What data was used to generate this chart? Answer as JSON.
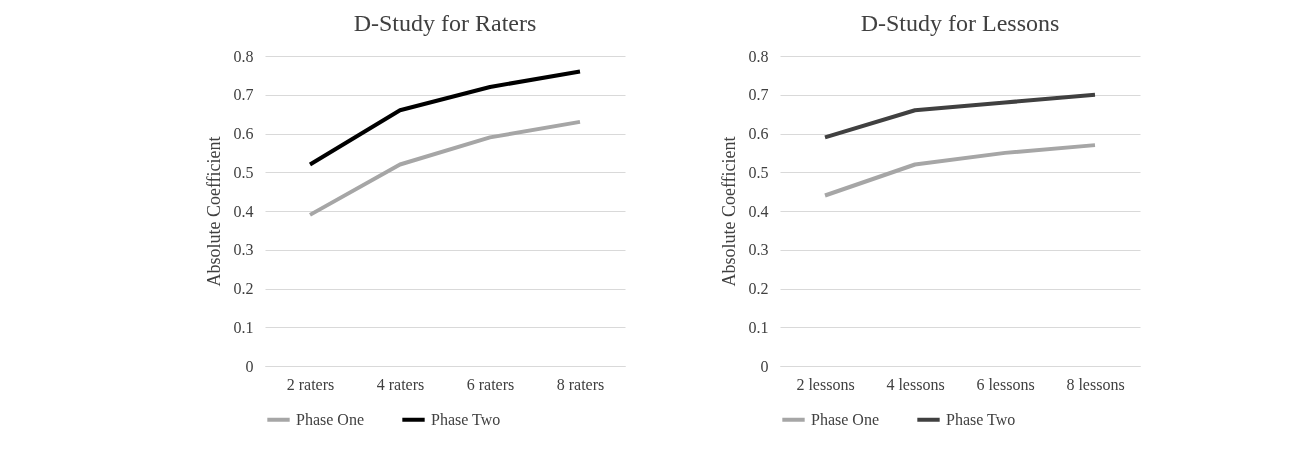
{
  "chart_data": [
    {
      "type": "line",
      "title": "D-Study for Raters",
      "ylabel": "Absolute Coefficient",
      "categories": [
        "2 raters",
        "4 raters",
        "6 raters",
        "8 raters"
      ],
      "ylim": [
        0,
        0.8
      ],
      "yticks": [
        0,
        0.1,
        0.2,
        0.3,
        0.4,
        0.5,
        0.6,
        0.7,
        0.8
      ],
      "grid": "y",
      "legend": "bottom",
      "marker": "none",
      "line_style": "solid",
      "series": [
        {
          "name": "Phase One",
          "color": "#a6a6a6",
          "values": [
            0.39,
            0.52,
            0.59,
            0.63
          ]
        },
        {
          "name": "Phase Two",
          "color": "#000000",
          "values": [
            0.52,
            0.66,
            0.72,
            0.76
          ]
        }
      ]
    },
    {
      "type": "line",
      "title": "D-Study for Lessons",
      "ylabel": "Absolute Coefficient",
      "categories": [
        "2 lessons",
        "4 lessons",
        "6 lessons",
        "8 lessons"
      ],
      "ylim": [
        0,
        0.8
      ],
      "yticks": [
        0,
        0.1,
        0.2,
        0.3,
        0.4,
        0.5,
        0.6,
        0.7,
        0.8
      ],
      "grid": "y",
      "legend": "bottom",
      "marker": "none",
      "line_style": "solid",
      "series": [
        {
          "name": "Phase One",
          "color": "#a6a6a6",
          "values": [
            0.44,
            0.52,
            0.55,
            0.57
          ]
        },
        {
          "name": "Phase Two",
          "color": "#404040",
          "values": [
            0.59,
            0.66,
            0.68,
            0.7
          ]
        }
      ]
    }
  ]
}
